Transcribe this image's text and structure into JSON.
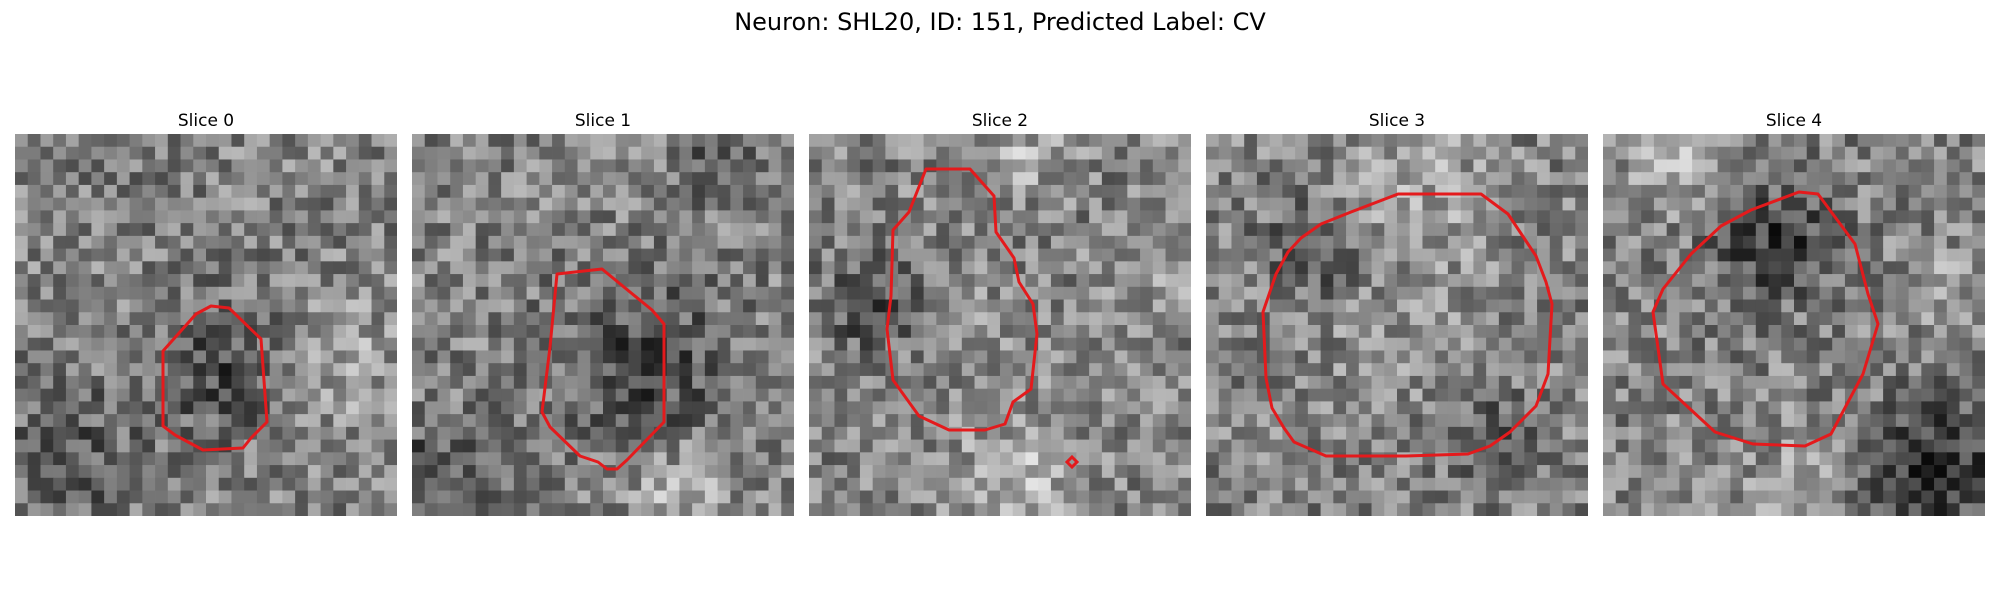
{
  "figure": {
    "title": "Neuron: SHL20, ID: 151, Predicted Label: CV"
  },
  "panels": [
    {
      "title": "Slice 0"
    },
    {
      "title": "Slice 1"
    },
    {
      "title": "Slice 2"
    },
    {
      "title": "Slice 3"
    },
    {
      "title": "Slice 4"
    }
  ],
  "colors": {
    "contour": "#e41a1c",
    "image_colormap": "grayscale"
  }
}
